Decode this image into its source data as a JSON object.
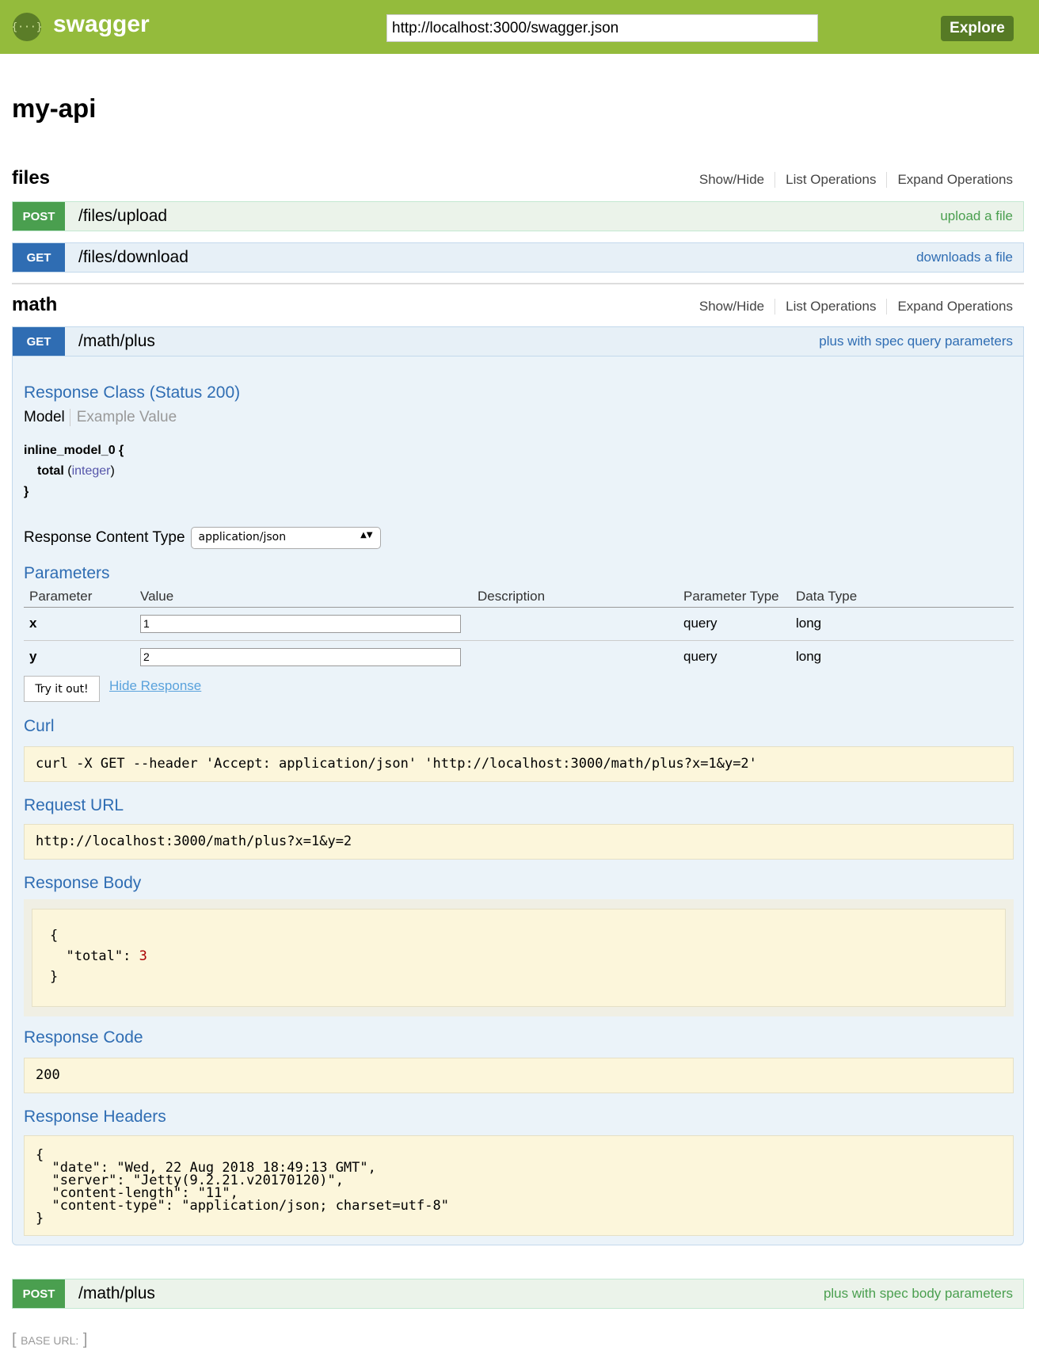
{
  "header": {
    "brand": "swagger",
    "logo_text": "{···}",
    "url": "http://localhost:3000/swagger.json",
    "explore": "Explore"
  },
  "api_title": "my-api",
  "ops_links": [
    "Show/Hide",
    "List Operations",
    "Expand Operations"
  ],
  "sections": [
    {
      "name": "files",
      "operations": [
        {
          "method": "POST",
          "path": "/files/upload",
          "summary": "upload a file"
        },
        {
          "method": "GET",
          "path": "/files/download",
          "summary": "downloads a file"
        }
      ]
    },
    {
      "name": "math",
      "operations": [
        {
          "method": "GET",
          "path": "/math/plus",
          "summary": "plus with spec query parameters"
        },
        {
          "method": "POST",
          "path": "/math/plus",
          "summary": "plus with spec body parameters"
        }
      ]
    }
  ],
  "expanded": {
    "response_class": "Response Class (Status 200)",
    "model_tab": "Model",
    "example_tab": "Example Value",
    "model_name": "inline_model_0 {",
    "model_field": "total",
    "model_type": "integer",
    "model_close": "}",
    "content_type_label": "Response Content Type",
    "content_type": "application/json",
    "parameters_title": "Parameters",
    "param_headers": [
      "Parameter",
      "Value",
      "Description",
      "Parameter Type",
      "Data Type"
    ],
    "params": [
      {
        "name": "x",
        "value": "1",
        "description": "",
        "type": "query",
        "data_type": "long"
      },
      {
        "name": "y",
        "value": "2",
        "description": "",
        "type": "query",
        "data_type": "long"
      }
    ],
    "try_button": "Try it out!",
    "hide_response": "Hide Response",
    "curl_title": "Curl",
    "curl": "curl -X GET --header 'Accept: application/json' 'http://localhost:3000/math/plus?x=1&y=2'",
    "request_url_title": "Request URL",
    "request_url": "http://localhost:3000/math/plus?x=1&y=2",
    "response_body_title": "Response Body",
    "body_key": "\"total\"",
    "body_value": "3",
    "response_code_title": "Response Code",
    "response_code": "200",
    "response_headers_title": "Response Headers",
    "response_headers": "{\n  \"date\": \"Wed, 22 Aug 2018 18:49:13 GMT\",\n  \"server\": \"Jetty(9.2.21.v20170120)\",\n  \"content-length\": \"11\",\n  \"content-type\": \"application/json; charset=utf-8\"\n}"
  },
  "footer": {
    "base_url": "BASE URL:"
  }
}
